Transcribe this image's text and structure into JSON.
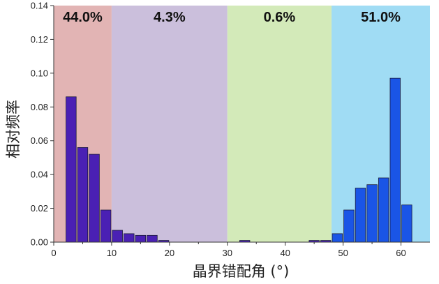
{
  "chart_data": {
    "type": "bar",
    "title": "",
    "xlabel": "晶界错配角 (°)",
    "ylabel": "相对频率",
    "xlim": [
      0,
      65
    ],
    "ylim": [
      0,
      0.14
    ],
    "xticks": [
      "0",
      "10",
      "20",
      "30",
      "40",
      "50",
      "60"
    ],
    "xtick_values": [
      0,
      10,
      20,
      30,
      40,
      50,
      60
    ],
    "yticks": [
      "0.00",
      "0.02",
      "0.04",
      "0.06",
      "0.08",
      "0.10",
      "0.12",
      "0.14"
    ],
    "ytick_values": [
      0,
      0.02,
      0.04,
      0.06,
      0.08,
      0.1,
      0.12,
      0.14
    ],
    "bin_width": 2,
    "bars": [
      {
        "x": 3,
        "value": 0.086
      },
      {
        "x": 5,
        "value": 0.056
      },
      {
        "x": 7,
        "value": 0.052
      },
      {
        "x": 9,
        "value": 0.019
      },
      {
        "x": 11,
        "value": 0.007
      },
      {
        "x": 13,
        "value": 0.005
      },
      {
        "x": 15,
        "value": 0.004
      },
      {
        "x": 17,
        "value": 0.004
      },
      {
        "x": 19,
        "value": 0.001
      },
      {
        "x": 33,
        "value": 0.001
      },
      {
        "x": 45,
        "value": 0.001
      },
      {
        "x": 47,
        "value": 0.001
      },
      {
        "x": 49,
        "value": 0.005
      },
      {
        "x": 51,
        "value": 0.019
      },
      {
        "x": 53,
        "value": 0.032
      },
      {
        "x": 55,
        "value": 0.034
      },
      {
        "x": 57,
        "value": 0.038
      },
      {
        "x": 59,
        "value": 0.097
      },
      {
        "x": 61,
        "value": 0.022
      }
    ],
    "regions": [
      {
        "range": [
          0,
          10
        ],
        "label": "44.0%",
        "color": "#e2b4b4",
        "bar_color": "#4a20b4"
      },
      {
        "range": [
          10,
          30
        ],
        "label": "4.3%",
        "color": "#cbbfdc",
        "bar_color": "#4a20b4"
      },
      {
        "range": [
          30,
          48
        ],
        "label": "0.6%",
        "color": "#d3eab9",
        "bar_color": "#4a20b4"
      },
      {
        "range": [
          48,
          65
        ],
        "label": "51.0%",
        "color": "#a0dcf4",
        "bar_color": "#1a55e6"
      }
    ],
    "grid": false,
    "legend": "none"
  }
}
